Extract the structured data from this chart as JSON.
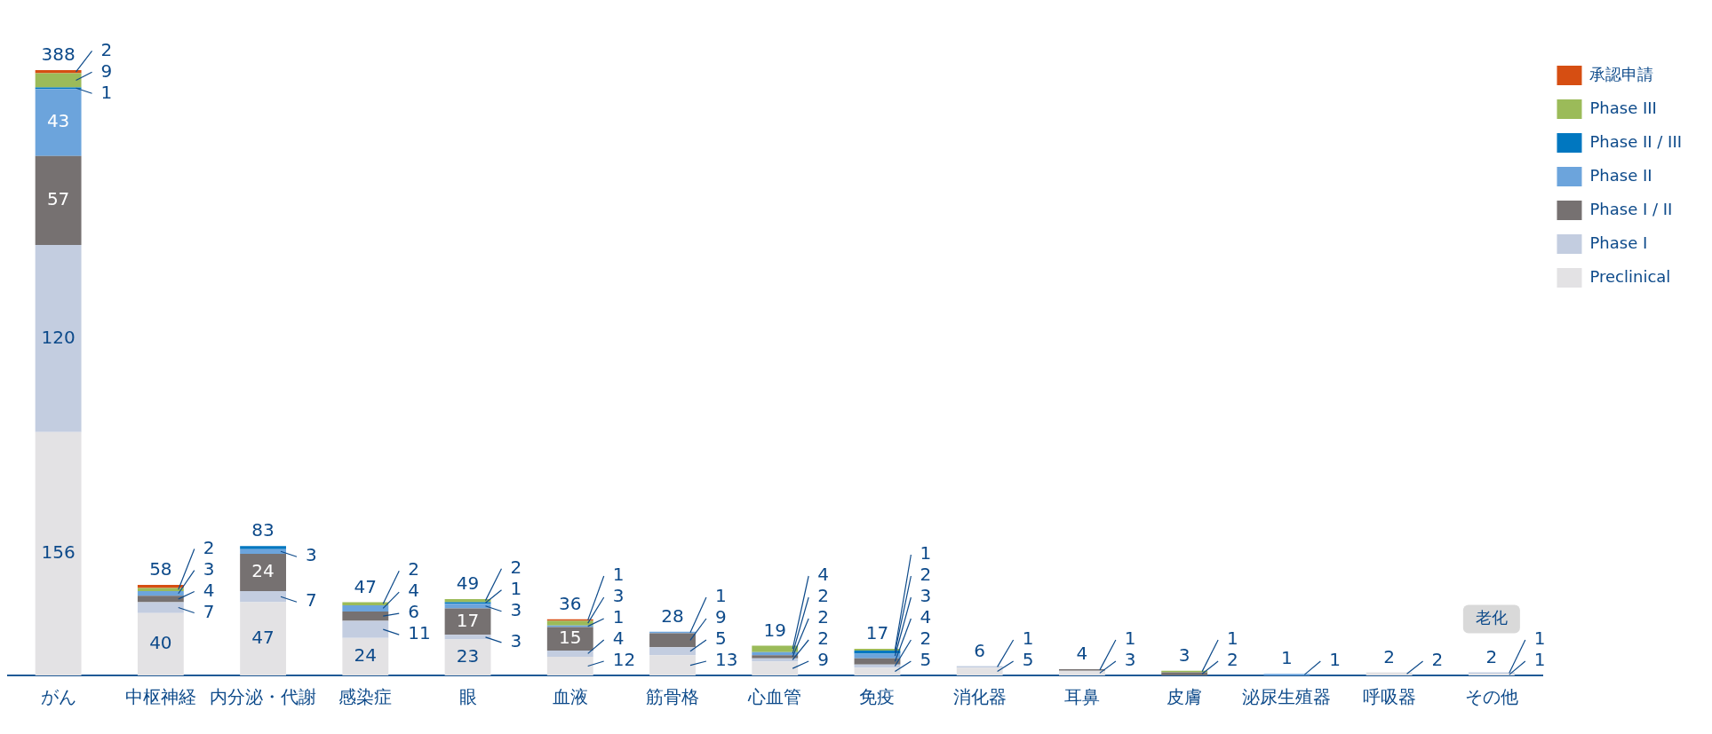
{
  "chart_data": {
    "type": "bar",
    "stacked": true,
    "categories": [
      "がん",
      "中枢神経",
      "内分泌・代謝",
      "感染症",
      "眼",
      "血液",
      "筋骨格",
      "心血管",
      "免疫",
      "消化器",
      "耳鼻",
      "皮膚",
      "泌尿生殖器",
      "呼吸器",
      "その他"
    ],
    "series": [
      {
        "name": "Preclinical",
        "color": "#e3e2e4",
        "values": [
          156,
          40,
          47,
          24,
          23,
          12,
          13,
          9,
          5,
          5,
          3,
          null,
          null,
          2,
          1
        ],
        "value_labels": [
          "156",
          "40",
          "47",
          "24",
          "23",
          "12",
          "13",
          "9",
          "5",
          "5",
          "3",
          null,
          null,
          "2",
          "1"
        ]
      },
      {
        "name": "Phase I",
        "color": "#c3cde0",
        "values": [
          120,
          7,
          7,
          11,
          3,
          4,
          5,
          2,
          2,
          1,
          null,
          null,
          null,
          null,
          1
        ],
        "value_labels": [
          "120",
          "7",
          "7",
          "11",
          "3",
          "4",
          "5",
          "2",
          "2",
          "1",
          null,
          null,
          null,
          null,
          "1"
        ]
      },
      {
        "name": "Phase I / II",
        "color": "#767171",
        "values": [
          57,
          4,
          24,
          6,
          17,
          15,
          9,
          2,
          4,
          null,
          1,
          2,
          null,
          null,
          null
        ],
        "value_labels": [
          "57",
          "4",
          "24",
          "6",
          "17",
          "15",
          "9",
          "2",
          "4",
          null,
          "1",
          "2",
          null,
          null,
          null
        ]
      },
      {
        "name": "Phase II",
        "color": "#6ca4dc",
        "values": [
          43,
          3,
          3,
          4,
          3,
          1,
          1,
          2,
          3,
          null,
          null,
          null,
          1,
          null,
          null
        ],
        "value_labels": [
          "43",
          "3",
          "3",
          "4",
          "3",
          "1",
          "1",
          "2",
          "3",
          null,
          null,
          null,
          "1",
          null,
          null
        ]
      },
      {
        "name": "Phase II / III",
        "color": "#0077c0",
        "values": [
          1,
          null,
          2,
          null,
          1,
          null,
          null,
          null,
          2,
          null,
          null,
          null,
          null,
          null,
          null
        ],
        "value_labels": [
          "1",
          null,
          null,
          null,
          "1",
          null,
          null,
          null,
          "2",
          null,
          null,
          null,
          null,
          null,
          null
        ]
      },
      {
        "name": "Phase III",
        "color": "#9bbb59",
        "values": [
          9,
          2,
          null,
          2,
          2,
          3,
          null,
          4,
          1,
          null,
          null,
          1,
          null,
          null,
          null
        ],
        "value_labels": [
          "9",
          "2",
          null,
          "2",
          "2",
          "3",
          null,
          "4",
          "1",
          null,
          null,
          "1",
          null,
          null,
          null
        ]
      },
      {
        "name": "承認申請",
        "color": "#d64e12",
        "values": [
          2,
          2,
          null,
          null,
          null,
          1,
          null,
          null,
          null,
          null,
          null,
          null,
          null,
          null,
          null
        ],
        "value_labels": [
          "2",
          null,
          null,
          null,
          null,
          "1",
          null,
          null,
          null,
          null,
          null,
          null,
          null,
          null,
          null
        ]
      }
    ],
    "totals": [
      "388",
      "58",
      "83",
      "47",
      "49",
      "36",
      "28",
      "19",
      "17",
      "6",
      "4",
      "3",
      "1",
      "2",
      "2"
    ],
    "annotations": [
      "老化"
    ],
    "tick_labels": "x",
    "grid": false,
    "legend": "right"
  }
}
